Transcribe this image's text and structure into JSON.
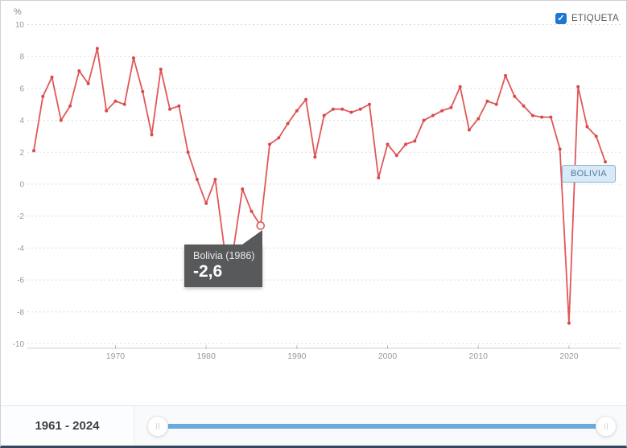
{
  "unit_label": "%",
  "legend": {
    "label": "ETIQUETA",
    "checked": true,
    "check_glyph": "✓"
  },
  "series_tag": "BOLIVIA",
  "tooltip": {
    "title": "Bolivia (1986)",
    "value": "-2,6"
  },
  "range": {
    "label": "1961 - 2024",
    "start": 1961,
    "end": 2024
  },
  "colors": {
    "line": "#e05858",
    "point": "#d94b4b",
    "grid": "#dcdcdc",
    "axis": "#cfcfcf",
    "tick_text": "#9a9a9a",
    "checkbox_blue": "#1f76d2",
    "slider_blue": "#69abdd",
    "tooltip_bg": "#58595b"
  },
  "chart_data": {
    "type": "line",
    "title": "",
    "xlabel": "",
    "ylabel": "%",
    "xlim": [
      1961,
      2024
    ],
    "ylim": [
      -10,
      10
    ],
    "grid": true,
    "xticks": [
      1970,
      1980,
      1990,
      2000,
      2010,
      2020
    ],
    "yticks": [
      10,
      8,
      6,
      4,
      2,
      0,
      -2,
      -4,
      -6,
      -8,
      -10
    ],
    "x": [
      1961,
      1962,
      1963,
      1964,
      1965,
      1966,
      1967,
      1968,
      1969,
      1970,
      1971,
      1972,
      1973,
      1974,
      1975,
      1976,
      1977,
      1978,
      1979,
      1980,
      1981,
      1982,
      1983,
      1984,
      1985,
      1986,
      1987,
      1988,
      1989,
      1990,
      1991,
      1992,
      1993,
      1994,
      1995,
      1996,
      1997,
      1998,
      1999,
      2000,
      2001,
      2002,
      2003,
      2004,
      2005,
      2006,
      2007,
      2008,
      2009,
      2010,
      2011,
      2012,
      2013,
      2014,
      2015,
      2016,
      2017,
      2018,
      2019,
      2020,
      2021,
      2022,
      2023,
      2024
    ],
    "series": [
      {
        "name": "Bolivia",
        "values": [
          2.1,
          5.5,
          6.7,
          4.0,
          4.9,
          7.1,
          6.3,
          8.5,
          4.6,
          5.2,
          5.0,
          7.9,
          5.8,
          3.1,
          7.2,
          4.7,
          4.9,
          2.0,
          0.3,
          -1.2,
          0.3,
          -4.0,
          -4.1,
          -0.3,
          -1.7,
          -2.6,
          2.5,
          2.9,
          3.8,
          4.6,
          5.3,
          1.7,
          4.3,
          4.7,
          4.7,
          4.5,
          4.7,
          5.0,
          0.4,
          2.5,
          1.8,
          2.5,
          2.7,
          4.0,
          4.3,
          4.6,
          4.8,
          6.1,
          3.4,
          4.1,
          5.2,
          5.0,
          6.8,
          5.5,
          4.9,
          4.3,
          4.2,
          4.2,
          2.2,
          -8.7,
          6.1,
          3.6,
          3.0,
          1.4
        ]
      }
    ],
    "highlight": {
      "x": 1986,
      "y": -2.6,
      "label": "Bolivia (1986)",
      "display_value": "-2,6"
    }
  }
}
